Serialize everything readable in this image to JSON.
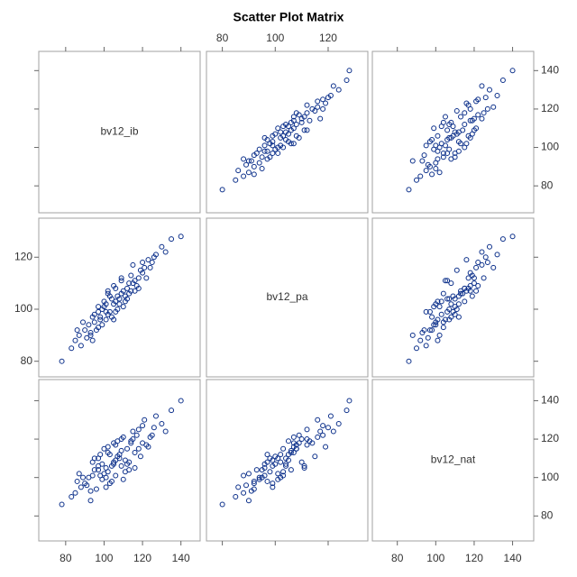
{
  "chart_data": {
    "type": "scatter_matrix",
    "title": "Scatter Plot Matrix",
    "color": "#0b2f8a",
    "variables": [
      {
        "name": "bv12_ib",
        "lim": [
          66,
          150
        ],
        "ticks": [
          80,
          100,
          120,
          140
        ],
        "values": [
          105,
          98,
          112,
          120,
          90,
          101,
          115,
          95,
          108,
          125,
          85,
          103,
          110,
          99,
          118,
          93,
          106,
          113,
          88,
          102,
          130,
          97,
          109,
          116,
          92,
          104,
          121,
          100,
          111,
          87,
          107,
          114,
          96,
          123,
          101,
          117,
          94,
          106,
          135,
          83,
          110,
          99,
          119,
          102,
          91,
          112,
          105,
          126,
          97,
          108,
          115,
          89,
          103,
          122,
          95,
          109,
          140,
          100,
          113,
          78,
          107,
          118,
          93,
          104,
          127,
          98,
          111,
          86,
          120,
          106,
          102,
          116,
          94,
          109,
          132,
          101,
          97,
          114,
          105,
          124
        ]
      },
      {
        "name": "bv12_pa",
        "lim": [
          74,
          135
        ],
        "ticks": [
          80,
          100,
          120
        ],
        "values": [
          102,
          96,
          108,
          114,
          92,
          99,
          110,
          95,
          104,
          118,
          88,
          105,
          101,
          100,
          112,
          90,
          108,
          106,
          86,
          98,
          124,
          101,
          111,
          107,
          94,
          97,
          116,
          103,
          105,
          90,
          100,
          113,
          92,
          119,
          96,
          109,
          97,
          103,
          127,
          85,
          107,
          94,
          115,
          106,
          89,
          104,
          109,
          120,
          93,
          102,
          117,
          95,
          99,
          112,
          98,
          106,
          128,
          101,
          110,
          80,
          105,
          108,
          91,
          104,
          121,
          97,
          103,
          92,
          118,
          99,
          107,
          111,
          88,
          112,
          122,
          102,
          99,
          107,
          96,
          116
        ]
      },
      {
        "name": "bv12_nat",
        "lim": [
          67,
          151
        ],
        "ticks": [
          80,
          100,
          120,
          140
        ],
        "values": [
          108,
          101,
          115,
          118,
          97,
          95,
          120,
          104,
          110,
          122,
          92,
          112,
          99,
          107,
          125,
          88,
          117,
          104,
          95,
          103,
          128,
          110,
          106,
          113,
          100,
          98,
          130,
          115,
          109,
          102,
          111,
          119,
          94,
          116,
          105,
          122,
          108,
          101,
          135,
          90,
          121,
          99,
          111,
          113,
          96,
          107,
          118,
          126,
          104,
          112,
          124,
          100,
          97,
          117,
          110,
          114,
          140,
          102,
          108,
          86,
          119,
          115,
          93,
          106,
          132,
          112,
          103,
          98,
          127,
          109,
          116,
          105,
          101,
          120,
          124,
          100,
          106,
          118,
          107,
          121
        ]
      }
    ]
  }
}
